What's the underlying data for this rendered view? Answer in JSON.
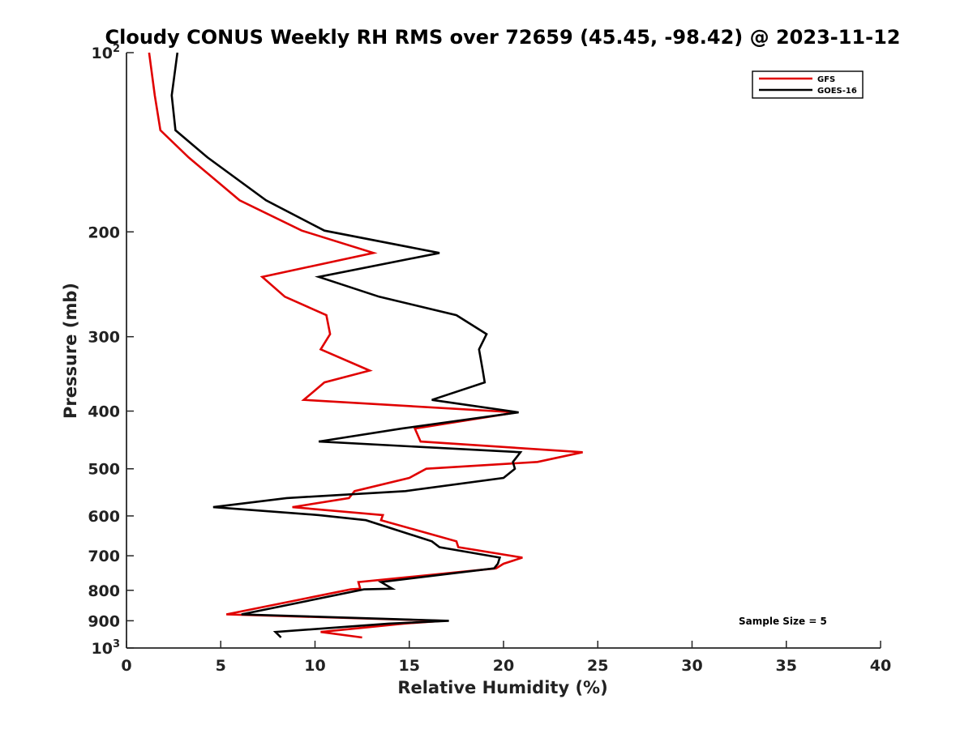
{
  "chart_data": {
    "type": "line",
    "title": "Cloudy CONUS Weekly RH RMS over 72659 (45.45, -98.42) @ 2023-11-12",
    "xlabel": "Relative Humidity (%)",
    "ylabel": "Pressure (mb)",
    "xlim": [
      0,
      40
    ],
    "ylim": [
      100,
      1000
    ],
    "y_scale": "log",
    "y_inverted": true,
    "x_ticks": [
      "0",
      "5",
      "10",
      "15",
      "20",
      "25",
      "30",
      "35",
      "40"
    ],
    "y_ticks": [
      {
        "value": 100,
        "base": "10",
        "exp": "2"
      },
      {
        "value": 200,
        "label": "200"
      },
      {
        "value": 300,
        "label": "300"
      },
      {
        "value": 400,
        "label": "400"
      },
      {
        "value": 500,
        "label": "500"
      },
      {
        "value": 600,
        "label": "600"
      },
      {
        "value": 700,
        "label": "700"
      },
      {
        "value": 800,
        "label": "800"
      },
      {
        "value": 900,
        "label": "900"
      },
      {
        "value": 1000,
        "base": "10",
        "exp": "3"
      }
    ],
    "legend_position": "top-right",
    "annotation": "Sample Size = 5",
    "series": [
      {
        "name": "GFS",
        "color": "#e00000",
        "points": [
          [
            1.2,
            100
          ],
          [
            1.5,
            118
          ],
          [
            1.8,
            135
          ],
          [
            3.3,
            150
          ],
          [
            6.0,
            177
          ],
          [
            9.3,
            199
          ],
          [
            13.1,
            217
          ],
          [
            7.2,
            238
          ],
          [
            8.4,
            257
          ],
          [
            10.6,
            276
          ],
          [
            10.8,
            297
          ],
          [
            10.3,
            315
          ],
          [
            12.9,
            342
          ],
          [
            10.5,
            358
          ],
          [
            9.4,
            383
          ],
          [
            20.7,
            402
          ],
          [
            15.3,
            428
          ],
          [
            15.6,
            450
          ],
          [
            24.2,
            469
          ],
          [
            21.8,
            487
          ],
          [
            15.9,
            500
          ],
          [
            15.0,
            518
          ],
          [
            12.1,
            545
          ],
          [
            11.8,
            560
          ],
          [
            8.8,
            580
          ],
          [
            13.6,
            598
          ],
          [
            13.5,
            610
          ],
          [
            17.5,
            662
          ],
          [
            17.6,
            677
          ],
          [
            21.0,
            705
          ],
          [
            20.0,
            722
          ],
          [
            19.6,
            735
          ],
          [
            12.3,
            775
          ],
          [
            12.4,
            795
          ],
          [
            11.9,
            797
          ],
          [
            5.3,
            878
          ],
          [
            16.8,
            900
          ],
          [
            14.7,
            910
          ],
          [
            10.3,
            940
          ],
          [
            12.5,
            960
          ]
        ]
      },
      {
        "name": "GOES-16",
        "color": "#000000",
        "points": [
          [
            2.7,
            100
          ],
          [
            2.4,
            118
          ],
          [
            2.6,
            135
          ],
          [
            4.3,
            150
          ],
          [
            7.4,
            177
          ],
          [
            10.5,
            199
          ],
          [
            16.6,
            217
          ],
          [
            10.2,
            238
          ],
          [
            13.4,
            257
          ],
          [
            17.5,
            276
          ],
          [
            19.1,
            297
          ],
          [
            18.7,
            315
          ],
          [
            18.9,
            342
          ],
          [
            19.0,
            358
          ],
          [
            16.2,
            383
          ],
          [
            20.8,
            402
          ],
          [
            14.6,
            428
          ],
          [
            10.2,
            450
          ],
          [
            20.9,
            469
          ],
          [
            20.5,
            487
          ],
          [
            20.6,
            500
          ],
          [
            20.0,
            518
          ],
          [
            14.8,
            545
          ],
          [
            8.5,
            560
          ],
          [
            4.6,
            580
          ],
          [
            10.2,
            598
          ],
          [
            12.7,
            610
          ],
          [
            16.2,
            662
          ],
          [
            16.6,
            677
          ],
          [
            19.8,
            705
          ],
          [
            19.7,
            722
          ],
          [
            19.5,
            735
          ],
          [
            13.5,
            775
          ],
          [
            14.1,
            795
          ],
          [
            12.6,
            797
          ],
          [
            6.1,
            878
          ],
          [
            17.1,
            900
          ],
          [
            13.9,
            910
          ],
          [
            7.9,
            940
          ],
          [
            8.2,
            960
          ]
        ]
      }
    ]
  }
}
